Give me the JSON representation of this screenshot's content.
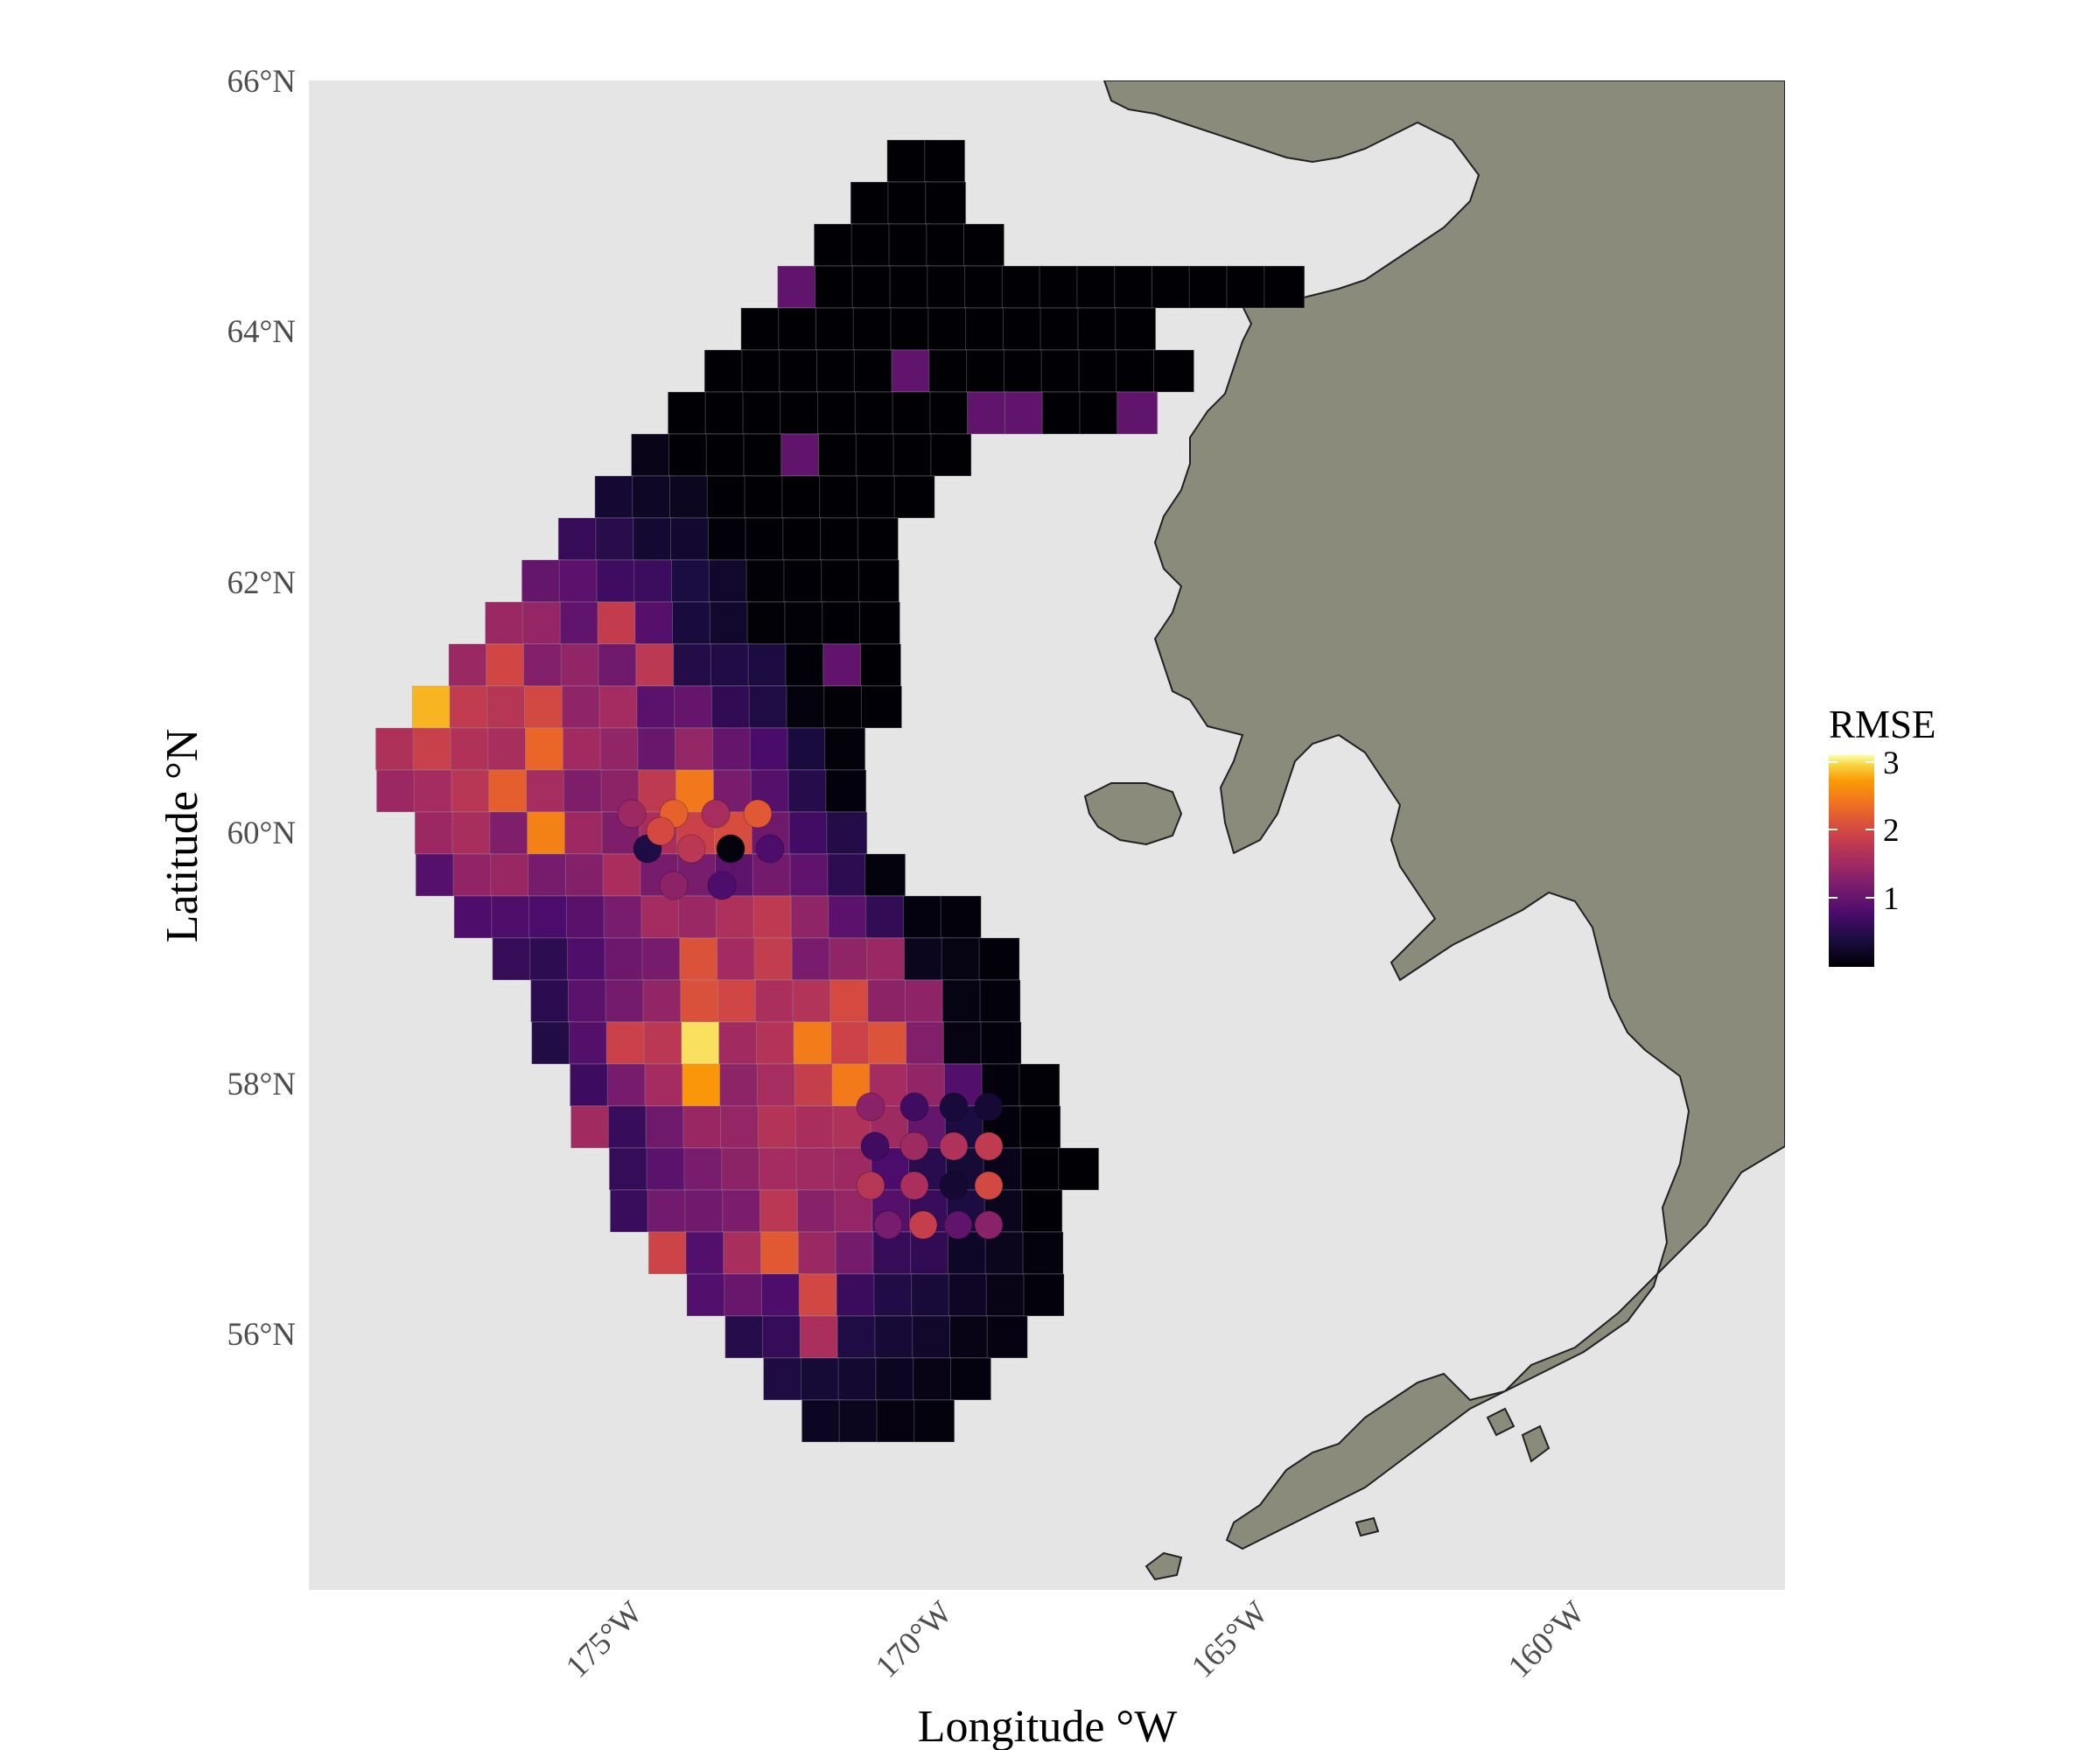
{
  "map": {
    "x_axis_title": "Longitude °W",
    "y_axis_title": "Latitude °N",
    "x_ticks": [
      "175°W",
      "170°W",
      "165°W",
      "160°W"
    ],
    "y_ticks": [
      "66°N",
      "64°N",
      "62°N",
      "60°N",
      "58°N",
      "56°N"
    ],
    "panel_background": "#e5e5e5",
    "land_color": "#8a8b7b",
    "colormap": "inferno"
  },
  "legend": {
    "title": "RMSE",
    "labels": [
      "3",
      "2",
      "1"
    ],
    "range": [
      0,
      3.2
    ]
  },
  "chart_data": {
    "type": "heatmap",
    "x_label": "Longitude °W",
    "y_label": "Latitude °N",
    "x_ticks": [
      175,
      170,
      165,
      160
    ],
    "y_ticks": [
      66,
      64,
      62,
      60,
      58,
      56
    ],
    "value_name": "RMSE",
    "value_range": [
      0,
      3.2
    ],
    "note_legend_range_scale": "colorbar 0 to ~3.2"
  }
}
